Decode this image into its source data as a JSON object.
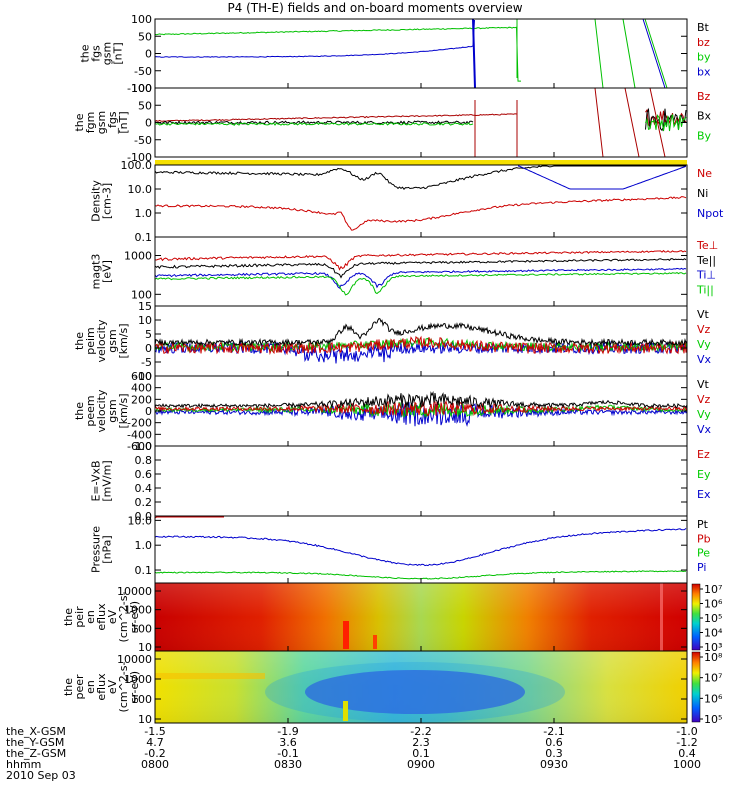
{
  "title": "P4 (TH-E) fields and on-board moments overview",
  "bottom_labels": [
    "the_X-GSM",
    "the_Y-GSM",
    "the_Z-GSM",
    "hhmm",
    "2010 Sep 03"
  ],
  "chart_data": [
    {
      "type": "line",
      "ylabel": [
        "the",
        "fgs",
        "gsm",
        "[nT]"
      ],
      "ylim": [
        -100,
        100
      ],
      "yticks": [
        "100",
        "50",
        "0",
        "-50",
        "-100"
      ],
      "legend": [
        {
          "label": "Bt",
          "color": "#000000"
        },
        {
          "label": "bz",
          "color": "#cc0000"
        },
        {
          "label": "by",
          "color": "#00cc00"
        },
        {
          "label": "bx",
          "color": "#0000cc"
        }
      ]
    },
    {
      "type": "line",
      "ylabel": [
        "the",
        "fgm",
        "gsm",
        "_fgs",
        "[nT]"
      ],
      "ylim": [
        -120,
        120
      ],
      "yticks": [
        "100",
        "50",
        "0",
        "-50",
        "-100"
      ],
      "legend": [
        {
          "label": "Bz",
          "color": "#cc0000"
        },
        {
          "label": "Bx",
          "color": "#000000"
        },
        {
          "label": "By",
          "color": "#00cc00"
        }
      ]
    },
    {
      "type": "line",
      "log": true,
      "ylabel": [
        "Density",
        "[cm-3]"
      ],
      "ylim": [
        0.1,
        100
      ],
      "yticks": [
        "100.0",
        "10.0",
        "1.0",
        "0.1"
      ],
      "legend": [
        {
          "label": "Ne",
          "color": "#cc0000"
        },
        {
          "label": "Ni",
          "color": "#000000"
        },
        {
          "label": "Npot",
          "color": "#0000cc"
        }
      ]
    },
    {
      "type": "line",
      "log": true,
      "ylabel": [
        "magt3",
        "[eV]"
      ],
      "ylim": [
        50,
        3000
      ],
      "yticks": [
        "1000",
        "100"
      ],
      "legend": [
        {
          "label": "Te⊥",
          "color": "#cc0000"
        },
        {
          "label": "Te||",
          "color": "#000000"
        },
        {
          "label": "Ti⊥",
          "color": "#0000cc"
        },
        {
          "label": "Ti||",
          "color": "#00cc00"
        }
      ]
    },
    {
      "type": "line",
      "ylabel": [
        "the",
        "peim",
        "velocity",
        "gsm",
        "[km/s]"
      ],
      "ylim": [
        -10,
        15
      ],
      "yticks": [
        "15",
        "10",
        "5",
        "0",
        "-5",
        "-10"
      ],
      "legend": [
        {
          "label": "Vt",
          "color": "#000000"
        },
        {
          "label": "Vz",
          "color": "#cc0000"
        },
        {
          "label": "Vy",
          "color": "#00cc00"
        },
        {
          "label": "Vx",
          "color": "#0000cc"
        }
      ]
    },
    {
      "type": "line",
      "ylabel": [
        "the",
        "peem",
        "velocity",
        "gsm",
        "[km/s]"
      ],
      "ylim": [
        -600,
        600
      ],
      "yticks": [
        "600",
        "400",
        "200",
        "0",
        "-200",
        "-400",
        "-600"
      ],
      "legend": [
        {
          "label": "Vt",
          "color": "#000000"
        },
        {
          "label": "Vz",
          "color": "#cc0000"
        },
        {
          "label": "Vy",
          "color": "#00cc00"
        },
        {
          "label": "Vx",
          "color": "#0000cc"
        }
      ]
    },
    {
      "type": "line",
      "ylabel": [
        "E=-VxB",
        "[mV/m]"
      ],
      "ylim": [
        0,
        1
      ],
      "yticks": [
        "1.0",
        "0.8",
        "0.6",
        "0.4",
        "0.2",
        "0.0"
      ],
      "legend": [
        {
          "label": "Ez",
          "color": "#cc0000"
        },
        {
          "label": "Ey",
          "color": "#00cc00"
        },
        {
          "label": "Ex",
          "color": "#0000cc"
        }
      ]
    },
    {
      "type": "line",
      "log": true,
      "ylabel": [
        "Pressure",
        "[nPa]"
      ],
      "ylim": [
        0.03,
        15
      ],
      "yticks": [
        "10.0",
        "1.0",
        "0.1"
      ],
      "legend": [
        {
          "label": "Pt",
          "color": "#000000"
        },
        {
          "label": "Pb",
          "color": "#cc0000"
        },
        {
          "label": "Pe",
          "color": "#00cc00"
        },
        {
          "label": "Pi",
          "color": "#0000cc"
        }
      ]
    },
    {
      "type": "heatmap",
      "ylabel": [
        "the",
        "peir",
        "en",
        "eflux",
        "eV",
        "(cm^2-s-",
        "sr-eV)"
      ],
      "yticks": [
        "10000",
        "1000",
        "100",
        "10"
      ],
      "colorbar_ticks": [
        "10⁷",
        "10⁶",
        "10⁵",
        "10⁴",
        "10³"
      ]
    },
    {
      "type": "heatmap",
      "ylabel": [
        "the",
        "peer",
        "en",
        "eflux",
        "eV",
        "(cm^2-s-",
        "sr-eV)"
      ],
      "yticks": [
        "10000",
        "1000",
        "100",
        "10"
      ],
      "colorbar_ticks": [
        "10⁸",
        "10⁷",
        "10⁶",
        "10⁵"
      ]
    }
  ],
  "x_axis": {
    "ticks": [
      {
        "hhmm": "0800",
        "x": "-1.5",
        "y": "4.7",
        "z": "-0.2"
      },
      {
        "hhmm": "0830",
        "x": "-1.9",
        "y": "3.6",
        "z": "-0.1"
      },
      {
        "hhmm": "0900",
        "x": "-2.2",
        "y": "2.3",
        "z": "0.1"
      },
      {
        "hhmm": "0930",
        "x": "-2.1",
        "y": "0.6",
        "z": "0.3"
      },
      {
        "hhmm": "1000",
        "x": "-1.0",
        "y": "-1.2",
        "z": "0.4"
      }
    ]
  }
}
